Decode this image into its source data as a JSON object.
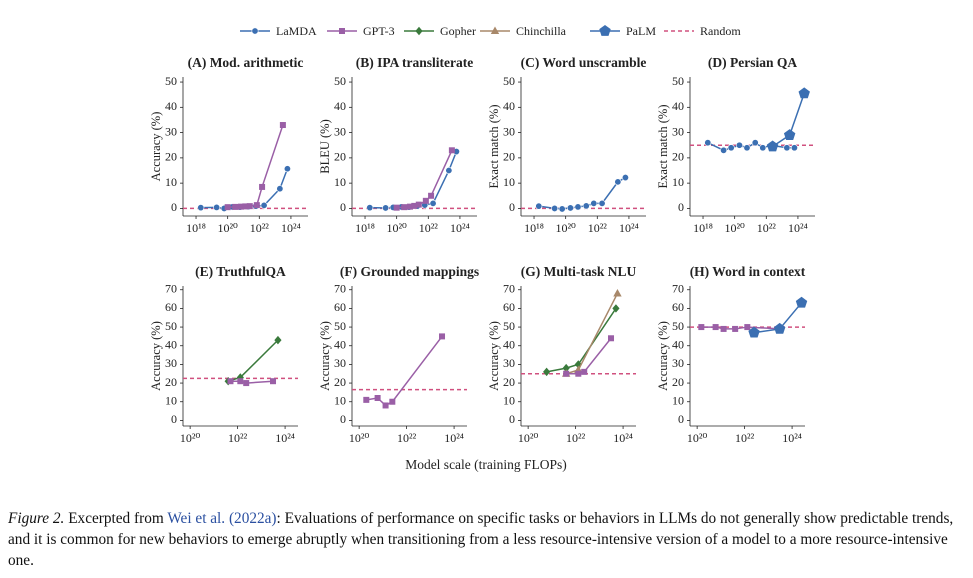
{
  "legend": {
    "entries": [
      {
        "name": "LaMDA",
        "color": "#3b6fb2",
        "marker": "circle"
      },
      {
        "name": "GPT-3",
        "color": "#9a5fa6",
        "marker": "square"
      },
      {
        "name": "Gopher",
        "color": "#3a7a3c",
        "marker": "diamond"
      },
      {
        "name": "Chinchilla",
        "color": "#a8886a",
        "marker": "triangle"
      },
      {
        "name": "PaLM",
        "color": "#3b6fb2",
        "marker": "pentagon"
      },
      {
        "name": "Random",
        "color": "#d0507f",
        "marker": "dashed"
      }
    ]
  },
  "xlabel": "Model scale (training FLOPs)",
  "chart_data": [
    {
      "type": "line",
      "title": "(A) Mod. arithmetic",
      "ylabel": "Accuracy (%)",
      "xscale": "log",
      "xlim": [
        1.5e+17,
        1.2e+25
      ],
      "ylim": [
        -3,
        52
      ],
      "xticks": [
        {
          "value": 1e+18,
          "label": "10¹⁸"
        },
        {
          "value": 1e+20,
          "label": "10²⁰"
        },
        {
          "value": 1e+22,
          "label": "10²²"
        },
        {
          "value": 1e+24,
          "label": "10²⁴"
        }
      ],
      "yticks": [
        0,
        10,
        20,
        30,
        40,
        50
      ],
      "random": 0,
      "series": [
        {
          "name": "LaMDA",
          "x": [
            2e+18,
            2e+19,
            6e+19,
            2e+20,
            6e+20,
            2e+21,
            6e+21,
            2e+22,
            2e+23,
            6e+23
          ],
          "values": [
            0.3,
            0.4,
            0,
            0.6,
            0.5,
            0.7,
            0.9,
            1.2,
            7.8,
            15.7
          ]
        },
        {
          "name": "GPT-3",
          "x": [
            1e+20,
            3e+20,
            7e+20,
            1.3e+21,
            2.5e+21,
            7e+21,
            1.5e+22,
            3.1e+23
          ],
          "values": [
            0.5,
            0.6,
            0.7,
            0.8,
            0.9,
            1.3,
            8.5,
            33
          ]
        }
      ]
    },
    {
      "type": "line",
      "title": "(B) IPA transliterate",
      "ylabel": "BLEU (%)",
      "xscale": "log",
      "xlim": [
        1.5e+17,
        1.2e+25
      ],
      "ylim": [
        -3,
        52
      ],
      "xticks": [
        {
          "value": 1e+18,
          "label": "10¹⁸"
        },
        {
          "value": 1e+20,
          "label": "10²⁰"
        },
        {
          "value": 1e+22,
          "label": "10²²"
        },
        {
          "value": 1e+24,
          "label": "10²⁴"
        }
      ],
      "yticks": [
        0,
        10,
        20,
        30,
        40,
        50
      ],
      "random": 0,
      "series": [
        {
          "name": "LaMDA",
          "x": [
            2e+18,
            2e+19,
            6e+19,
            2e+20,
            6e+20,
            2e+21,
            6e+21,
            2e+22,
            2e+23,
            6e+23
          ],
          "values": [
            0.3,
            0.2,
            0.4,
            0.6,
            0.5,
            0.9,
            1.3,
            2,
            15,
            22.5
          ]
        },
        {
          "name": "GPT-3",
          "x": [
            1e+20,
            3e+20,
            7e+20,
            1.3e+21,
            2.5e+21,
            7e+21,
            1.5e+22,
            3.1e+23
          ],
          "values": [
            0.3,
            0.5,
            0.7,
            1,
            1.5,
            3,
            5,
            23
          ]
        }
      ]
    },
    {
      "type": "line",
      "title": "(C) Word unscramble",
      "ylabel": "Exact match (%)",
      "xscale": "log",
      "xlim": [
        1.5e+17,
        1.2e+25
      ],
      "ylim": [
        -3,
        52
      ],
      "xticks": [
        {
          "value": 1e+18,
          "label": "10¹⁸"
        },
        {
          "value": 1e+20,
          "label": "10²⁰"
        },
        {
          "value": 1e+22,
          "label": "10²²"
        },
        {
          "value": 1e+24,
          "label": "10²⁴"
        }
      ],
      "yticks": [
        0,
        10,
        20,
        30,
        40,
        50
      ],
      "random": 0,
      "series": [
        {
          "name": "LaMDA",
          "x": [
            2e+18,
            2e+19,
            6e+19,
            2e+20,
            6e+20,
            2e+21,
            6e+21,
            2e+22,
            2e+23,
            6e+23
          ],
          "values": [
            0.9,
            0,
            -0.2,
            0.2,
            0.6,
            1,
            2,
            2,
            10.5,
            12.2
          ]
        }
      ]
    },
    {
      "type": "line",
      "title": "(D) Persian QA",
      "ylabel": "Exact match (%)",
      "xscale": "log",
      "xlim": [
        1.5e+17,
        1.2e+25
      ],
      "ylim": [
        -3,
        52
      ],
      "xticks": [
        {
          "value": 1e+18,
          "label": "10¹⁸"
        },
        {
          "value": 1e+20,
          "label": "10²⁰"
        },
        {
          "value": 1e+22,
          "label": "10²²"
        },
        {
          "value": 1e+24,
          "label": "10²⁴"
        }
      ],
      "yticks": [
        0,
        10,
        20,
        30,
        40,
        50
      ],
      "random": 25,
      "series": [
        {
          "name": "LaMDA",
          "x": [
            2e+18,
            2e+19,
            6e+19,
            2e+20,
            6e+20,
            2e+21,
            6e+21,
            2e+22,
            2e+23,
            6e+23
          ],
          "values": [
            26,
            23,
            24,
            25,
            24,
            26,
            24,
            25,
            24,
            24
          ]
        },
        {
          "name": "PaLM",
          "x": [
            2.5e+22,
            3e+23,
            2.5e+24
          ],
          "values": [
            24.5,
            29,
            45.5
          ]
        }
      ]
    },
    {
      "type": "line",
      "title": "(E) TruthfulQA",
      "ylabel": "Accuracy (%)",
      "xscale": "log",
      "xlim": [
        5e+19,
        3.5e+24
      ],
      "ylim": [
        -3,
        72
      ],
      "xticks": [
        {
          "value": 1e+20,
          "label": "10²⁰"
        },
        {
          "value": 1e+22,
          "label": "10²²"
        },
        {
          "value": 1e+24,
          "label": "10²⁴"
        }
      ],
      "yticks": [
        0,
        10,
        20,
        30,
        40,
        50,
        60,
        70
      ],
      "random": 22.5,
      "series": [
        {
          "name": "Gopher",
          "x": [
            4e+21,
            1.3e+22,
            5e+23
          ],
          "values": [
            21,
            23,
            43
          ]
        },
        {
          "name": "GPT-3",
          "x": [
            5e+21,
            1.3e+22,
            2.3e+22,
            3.1e+23
          ],
          "values": [
            21,
            21,
            20,
            21
          ]
        }
      ]
    },
    {
      "type": "line",
      "title": "(F) Grounded mappings",
      "ylabel": "Accuracy (%)",
      "xscale": "log",
      "xlim": [
        5e+19,
        3.5e+24
      ],
      "ylim": [
        -3,
        72
      ],
      "xticks": [
        {
          "value": 1e+20,
          "label": "10²⁰"
        },
        {
          "value": 1e+22,
          "label": "10²²"
        },
        {
          "value": 1e+24,
          "label": "10²⁴"
        }
      ],
      "yticks": [
        0,
        10,
        20,
        30,
        40,
        50,
        60,
        70
      ],
      "random": 16.5,
      "series": [
        {
          "name": "GPT-3",
          "x": [
            2e+20,
            6e+20,
            1.3e+21,
            2.5e+21,
            3.1e+23
          ],
          "values": [
            11,
            12,
            8,
            10,
            45
          ]
        }
      ]
    },
    {
      "type": "line",
      "title": "(G) Multi-task NLU",
      "ylabel": "Accuracy (%)",
      "xscale": "log",
      "xlim": [
        5e+19,
        3.5e+24
      ],
      "ylim": [
        -3,
        72
      ],
      "xticks": [
        {
          "value": 1e+20,
          "label": "10²⁰"
        },
        {
          "value": 1e+22,
          "label": "10²²"
        },
        {
          "value": 1e+24,
          "label": "10²⁴"
        }
      ],
      "yticks": [
        0,
        10,
        20,
        30,
        40,
        50,
        60,
        70
      ],
      "random": 25,
      "series": [
        {
          "name": "Gopher",
          "x": [
            6e+20,
            4e+21,
            1.3e+22,
            5e+23
          ],
          "values": [
            26,
            28,
            30,
            60
          ]
        },
        {
          "name": "Chinchilla",
          "x": [
            4e+21,
            1.3e+22,
            5.8e+23
          ],
          "values": [
            25,
            27,
            68
          ]
        },
        {
          "name": "GPT-3",
          "x": [
            4e+21,
            1.3e+22,
            2.3e+22,
            3.1e+23
          ],
          "values": [
            25,
            25,
            26,
            44
          ]
        }
      ]
    },
    {
      "type": "line",
      "title": "(H) Word in context",
      "ylabel": "Accuracy (%)",
      "xscale": "log",
      "xlim": [
        5e+19,
        3.5e+24
      ],
      "ylim": [
        -3,
        72
      ],
      "xticks": [
        {
          "value": 1e+20,
          "label": "10²⁰"
        },
        {
          "value": 1e+22,
          "label": "10²²"
        },
        {
          "value": 1e+24,
          "label": "10²⁴"
        }
      ],
      "yticks": [
        0,
        10,
        20,
        30,
        40,
        50,
        60,
        70
      ],
      "random": 50,
      "series": [
        {
          "name": "GPT-3",
          "x": [
            1.5e+20,
            6e+20,
            1.3e+21,
            4e+21,
            1.3e+22,
            3.1e+23
          ],
          "values": [
            50,
            50,
            49,
            49,
            50,
            49
          ]
        },
        {
          "name": "PaLM",
          "x": [
            2.5e+22,
            3e+23,
            2.5e+24
          ],
          "values": [
            47,
            49,
            63
          ]
        }
      ]
    }
  ],
  "caption": {
    "label": "Figure 2.",
    "text": "Excerpted from",
    "ref": "Wei et al. (2022a)",
    "body": ": Evaluations of performance on specific tasks or behaviors in LLMs do not generally show predictable trends, and it is common for new behaviors to emerge abruptly when transitioning from a less resource-intensive version of a model to a more resource-intensive one."
  }
}
